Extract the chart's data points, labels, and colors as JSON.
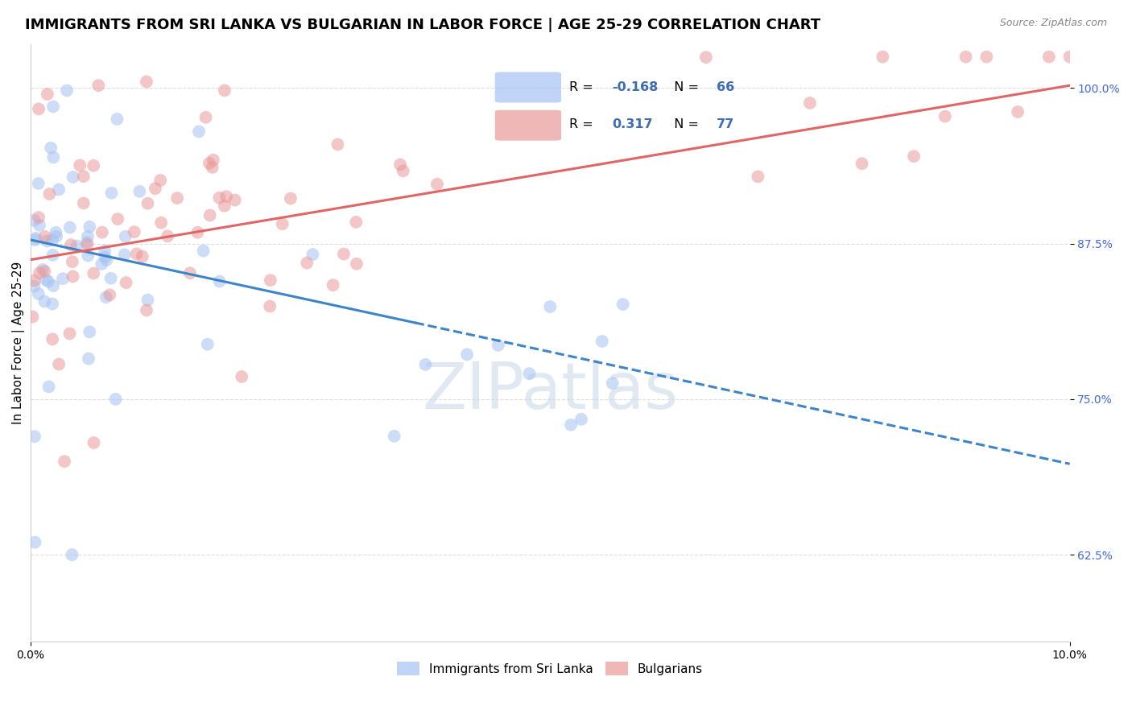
{
  "title": "IMMIGRANTS FROM SRI LANKA VS BULGARIAN IN LABOR FORCE | AGE 25-29 CORRELATION CHART",
  "source": "Source: ZipAtlas.com",
  "ylabel": "In Labor Force | Age 25-29",
  "xlim": [
    0.0,
    0.1
  ],
  "ylim": [
    0.555,
    1.035
  ],
  "yticks": [
    0.625,
    0.75,
    0.875,
    1.0
  ],
  "ytick_labels": [
    "62.5%",
    "75.0%",
    "87.5%",
    "100.0%"
  ],
  "blue_color": "#a4c2f4",
  "pink_color": "#ea9999",
  "blue_line_color": "#3d85c8",
  "pink_line_color": "#e06666",
  "blue_line_y0": 0.878,
  "blue_line_y1": 0.698,
  "pink_line_y0": 0.862,
  "pink_line_y1": 1.002,
  "watermark": "ZIPatlas",
  "title_fontsize": 13,
  "label_fontsize": 11,
  "tick_fontsize": 10,
  "legend_R_blue": "-0.168",
  "legend_N_blue": "66",
  "legend_R_pink": "0.317",
  "legend_N_pink": "77"
}
